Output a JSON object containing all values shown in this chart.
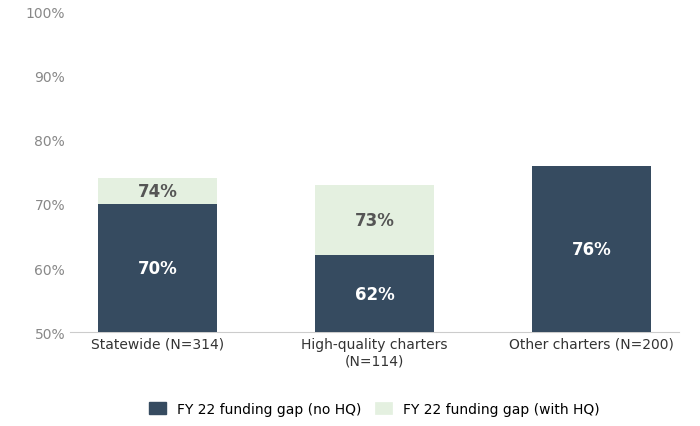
{
  "categories": [
    "Statewide (N=314)",
    "High-quality charters\n(N=114)",
    "Other charters (N=200)"
  ],
  "no_hq_values": [
    0.7,
    0.62,
    0.76
  ],
  "with_hq_values": [
    0.74,
    0.73,
    0.76
  ],
  "no_hq_labels": [
    "70%",
    "62%",
    "76%"
  ],
  "with_hq_labels": [
    "74%",
    "73%",
    null
  ],
  "no_hq_color": "#364b60",
  "with_hq_color": "#e4f0e0",
  "bar_width": 0.55,
  "ylim": [
    0.5,
    1.0
  ],
  "yticks": [
    0.5,
    0.6,
    0.7,
    0.8,
    0.9,
    1.0
  ],
  "ytick_labels": [
    "50%",
    "60%",
    "70%",
    "80%",
    "90%",
    "100%"
  ],
  "legend_labels": [
    "FY 22 funding gap (no HQ)",
    "FY 22 funding gap (with HQ)"
  ],
  "background_color": "#ffffff",
  "no_hq_label_fontsize": 12,
  "with_hq_label_fontsize": 12,
  "with_hq_label_color": "#555555",
  "ytick_color": "#888888",
  "xtick_color": "#333333",
  "bottom_spine_color": "#cccccc"
}
